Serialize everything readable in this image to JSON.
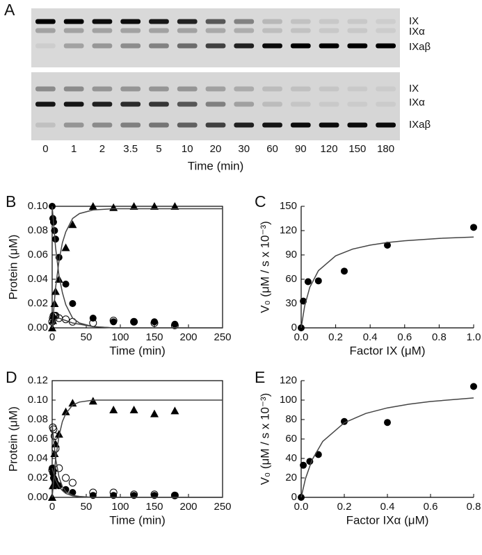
{
  "gel": {
    "panel": "A",
    "band_labels": [
      [
        "IX",
        "IXα",
        "IXaβ"
      ],
      [
        "IX",
        "IXα",
        "IXaβ"
      ]
    ],
    "lanes": [
      "0",
      "1",
      "2",
      "3.5",
      "5",
      "10",
      "20",
      "30",
      "60",
      "90",
      "120",
      "150",
      "180"
    ],
    "xlabel": "Time (min)"
  },
  "chart_data": [
    {
      "type": "scatter",
      "panel": "B",
      "xlabel": "Time (min)",
      "ylabel": "Protein (μM)",
      "box": true,
      "color": "#000000",
      "xlim": [
        0,
        250
      ],
      "xticks": [
        0,
        50,
        100,
        150,
        200,
        250
      ],
      "ylim": [
        0,
        0.1
      ],
      "yticks": [
        {
          "value": 0,
          "label": "0.00"
        },
        0.02,
        0.04,
        0.06,
        0.08,
        {
          "value": 0.1,
          "label": "0.10"
        }
      ],
      "series": [
        {
          "marker": "triangle",
          "x": [
            0,
            1,
            2,
            3.5,
            5,
            10,
            20,
            30,
            60,
            90,
            120,
            150,
            180
          ],
          "values": [
            0,
            0.006,
            0.01,
            0.02,
            0.03,
            0.04,
            0.066,
            0.085,
            0.1,
            0.099,
            0.1,
            0.1,
            0.1
          ]
        },
        {
          "marker": "circle",
          "x": [
            0,
            1,
            2,
            3.5,
            5,
            10,
            20,
            30,
            60,
            90,
            120,
            150,
            180
          ],
          "values": [
            0.1,
            0.09,
            0.087,
            0.08,
            0.073,
            0.058,
            0.036,
            0.02,
            0.008,
            0.005,
            0.005,
            0.005,
            0.003
          ]
        },
        {
          "marker": "open-circle",
          "x": [
            0,
            1,
            2,
            3.5,
            5,
            10,
            20,
            30,
            60,
            90,
            120,
            150,
            180
          ],
          "values": [
            0.005,
            0.008,
            0.01,
            0.01,
            0.01,
            0.008,
            0.007,
            0.005,
            0.004,
            0.006,
            0.005,
            0.004,
            0.002
          ]
        },
        {
          "line": true,
          "x": [
            0,
            5,
            10,
            15,
            20,
            30,
            40,
            60,
            90,
            120,
            180,
            250
          ],
          "values": [
            0,
            0.033,
            0.055,
            0.07,
            0.079,
            0.09,
            0.094,
            0.097,
            0.098,
            0.098,
            0.098,
            0.098
          ]
        },
        {
          "line": true,
          "x": [
            0,
            5,
            10,
            15,
            20,
            30,
            40,
            60,
            90,
            120,
            180,
            250
          ],
          "values": [
            0.1,
            0.066,
            0.043,
            0.029,
            0.019,
            0.008,
            0.004,
            0.001,
            0,
            0,
            0,
            0
          ]
        },
        {
          "line": true,
          "x": [
            0,
            5,
            10,
            15,
            20,
            30,
            40,
            60,
            90,
            120,
            180,
            250
          ],
          "values": [
            0,
            0.007,
            0.008,
            0.007,
            0.006,
            0.004,
            0.003,
            0.001,
            0,
            0,
            0,
            0
          ]
        }
      ]
    },
    {
      "type": "scatter",
      "panel": "C",
      "xlabel": "Factor IX (μM)",
      "ylabel": "V₀ (μM / s x 10⁻³)",
      "box": false,
      "color": "#000000",
      "xlim": [
        0,
        1
      ],
      "xticks": [
        {
          "value": 0,
          "label": "0.0"
        },
        0.2,
        0.4,
        0.6,
        0.8,
        {
          "value": 1,
          "label": "1.0"
        }
      ],
      "ylim": [
        0,
        150
      ],
      "yticks": [
        0,
        30,
        60,
        90,
        120,
        150
      ],
      "series": [
        {
          "marker": "circle",
          "x": [
            0,
            0.0125,
            0.04,
            0.1,
            0.25,
            0.5,
            1
          ],
          "values": [
            0,
            33,
            57,
            58,
            70,
            102,
            124
          ]
        },
        {
          "line": true,
          "x": [
            0,
            0.02,
            0.05,
            0.1,
            0.2,
            0.3,
            0.4,
            0.5,
            0.6,
            0.8,
            1
          ],
          "values": [
            0,
            26.7,
            50,
            70.6,
            88.9,
            97.3,
            102.1,
            105.3,
            107.5,
            110.4,
            112.1
          ]
        }
      ]
    },
    {
      "type": "scatter",
      "panel": "D",
      "xlabel": "Time (min)",
      "ylabel": "Protein (μM)",
      "box": true,
      "color": "#000000",
      "xlim": [
        0,
        250
      ],
      "xticks": [
        0,
        50,
        100,
        150,
        200,
        250
      ],
      "ylim": [
        0,
        0.12
      ],
      "yticks": [
        {
          "value": 0,
          "label": "0.00"
        },
        0.02,
        0.04,
        0.06,
        0.08,
        {
          "value": 0.1,
          "label": "0.10"
        },
        0.12
      ],
      "series": [
        {
          "marker": "triangle",
          "x": [
            0,
            1,
            2,
            3.5,
            5,
            10,
            20,
            30,
            60,
            90,
            120,
            150,
            180
          ],
          "values": [
            0,
            0.012,
            0.03,
            0.045,
            0.055,
            0.065,
            0.088,
            0.097,
            0.099,
            0.09,
            0.09,
            0.086,
            0.089
          ]
        },
        {
          "marker": "circle",
          "x": [
            0,
            1,
            2,
            3.5,
            5,
            10,
            20,
            30,
            60,
            90,
            120,
            150,
            180
          ],
          "values": [
            0.03,
            0.025,
            0.02,
            0.018,
            0.015,
            0.012,
            0.008,
            0.005,
            0.002,
            0.002,
            0.002,
            0.002,
            0.002
          ]
        },
        {
          "marker": "open-circle",
          "x": [
            0,
            1,
            2,
            3.5,
            5,
            10,
            20,
            30,
            60,
            90,
            120,
            150,
            180
          ],
          "values": [
            0.028,
            0.072,
            0.07,
            0.063,
            0.05,
            0.03,
            0.02,
            0.015,
            0.005,
            0.005,
            0.003,
            0.003,
            0.002
          ]
        },
        {
          "line": true,
          "x": [
            0,
            5,
            10,
            15,
            20,
            30,
            40,
            60,
            90,
            120,
            180,
            250
          ],
          "values": [
            0,
            0.039,
            0.063,
            0.078,
            0.086,
            0.095,
            0.098,
            0.1,
            0.1,
            0.1,
            0.1,
            0.1
          ]
        },
        {
          "line": true,
          "x": [
            0,
            5,
            10,
            15,
            20,
            30,
            40,
            60,
            90,
            120,
            180,
            250
          ],
          "values": [
            0.075,
            0.04,
            0.021,
            0.011,
            0.006,
            0.002,
            0.001,
            0,
            0,
            0,
            0,
            0
          ]
        },
        {
          "line": true,
          "x": [
            0,
            5,
            10,
            15,
            20,
            30,
            40,
            60,
            90,
            120,
            180,
            250
          ],
          "values": [
            0.03,
            0.018,
            0.011,
            0.007,
            0.004,
            0.0015,
            0.0005,
            0,
            0,
            0,
            0,
            0
          ]
        }
      ]
    },
    {
      "type": "scatter",
      "panel": "E",
      "xlabel": "Factor IXα (μM)",
      "ylabel": "V₀ (μM / s x 10⁻³)",
      "box": false,
      "color": "#000000",
      "xlim": [
        0,
        0.8
      ],
      "xticks": [
        {
          "value": 0,
          "label": "0.0"
        },
        0.2,
        0.4,
        0.6,
        0.8
      ],
      "ylim": [
        0,
        120
      ],
      "yticks": [
        0,
        20,
        40,
        60,
        80,
        100,
        120
      ],
      "series": [
        {
          "marker": "circle",
          "x": [
            0,
            0.01,
            0.04,
            0.08,
            0.2,
            0.4,
            0.8
          ],
          "values": [
            0,
            33,
            37,
            44,
            78,
            77,
            114
          ]
        },
        {
          "line": true,
          "x": [
            0,
            0.02,
            0.05,
            0.1,
            0.2,
            0.3,
            0.4,
            0.5,
            0.6,
            0.8
          ],
          "values": [
            0,
            19.2,
            38.3,
            57.5,
            76.7,
            86.3,
            92,
            95.8,
            98.6,
            102.2
          ]
        }
      ]
    }
  ]
}
